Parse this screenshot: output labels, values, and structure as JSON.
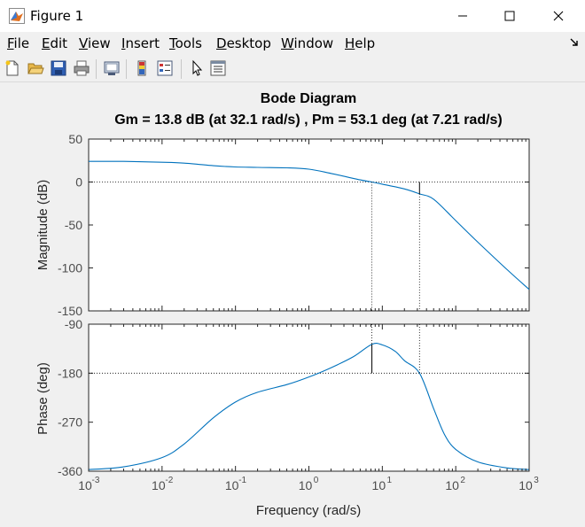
{
  "window": {
    "title": "Figure 1"
  },
  "menu": {
    "items": [
      "File",
      "Edit",
      "View",
      "Insert",
      "Tools",
      "Desktop",
      "Window",
      "Help"
    ],
    "underline": [
      0,
      0,
      0,
      0,
      0,
      0,
      0,
      0
    ]
  },
  "toolbar": {
    "buttons": [
      "new-figure",
      "open-file",
      "save",
      "print",
      "link-plot",
      "colorbar",
      "legend",
      "edit-plot",
      "property-inspector"
    ]
  },
  "plot": {
    "title": "Bode Diagram",
    "subtitle": "Gm = 13.8 dB (at 32.1 rad/s) ,  Pm = 53.1 deg (at 7.21 rad/s)",
    "xlabel": "Frequency  (rad/s)",
    "mag_ylabel": "Magnitude (dB)",
    "phase_ylabel": "Phase (deg)",
    "x_tick_exponents": [
      "-3",
      "-2",
      "-1",
      "0",
      "1",
      "2",
      "3"
    ],
    "mag_ticks": [
      "50",
      "0",
      "-50",
      "-100",
      "-150"
    ],
    "phase_ticks": [
      "-90",
      "-180",
      "-270",
      "-360"
    ]
  },
  "chart_data": [
    {
      "type": "line",
      "panel": "magnitude",
      "x_scale": "log",
      "xlim": [
        0.001,
        1000
      ],
      "ylim": [
        -150,
        50
      ],
      "ylabel": "Magnitude (dB)",
      "grid": false,
      "color": "#0072bd",
      "x": [
        0.001,
        0.003,
        0.01,
        0.02,
        0.05,
        0.1,
        0.2,
        0.5,
        1,
        2,
        5,
        7.21,
        10,
        20,
        32.1,
        50,
        100,
        200,
        500,
        1000
      ],
      "y": [
        24,
        24,
        23,
        22,
        19,
        17.5,
        17,
        16.5,
        15,
        10,
        2.5,
        0,
        -2.5,
        -8,
        -13.8,
        -20,
        -45,
        -70,
        -102,
        -125
      ],
      "reference_line": 0,
      "markers": [
        {
          "x": 7.21,
          "note": "gain crossover"
        },
        {
          "x": 32.1,
          "y": -13.8,
          "note": "gain margin"
        }
      ]
    },
    {
      "type": "line",
      "panel": "phase",
      "x_scale": "log",
      "xlim": [
        0.001,
        1000
      ],
      "ylim": [
        -360,
        -90
      ],
      "ylabel": "Phase (deg)",
      "grid": false,
      "color": "#0072bd",
      "x": [
        0.001,
        0.003,
        0.01,
        0.02,
        0.05,
        0.1,
        0.2,
        0.5,
        1,
        2,
        4,
        7.21,
        10,
        15,
        20,
        32.1,
        50,
        70,
        100,
        200,
        500,
        1000
      ],
      "y": [
        -357,
        -352,
        -335,
        -310,
        -262,
        -233,
        -215,
        -201,
        -187,
        -170,
        -150,
        -126.9,
        -128,
        -140,
        -157,
        -180,
        -245,
        -292,
        -320,
        -343,
        -354,
        -357
      ],
      "reference_line": -180,
      "markers": [
        {
          "x": 7.21,
          "y": -126.9,
          "note": "phase margin"
        },
        {
          "x": 32.1,
          "note": "phase crossover"
        }
      ]
    }
  ]
}
